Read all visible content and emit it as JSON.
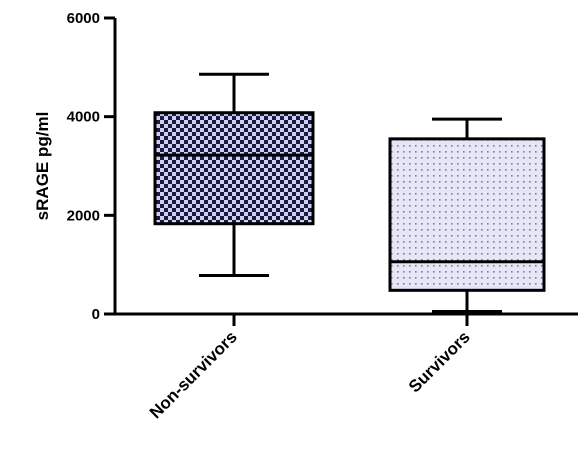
{
  "chart_data": {
    "type": "box",
    "ylabel": "sRAGE pg/ml",
    "ylim": [
      0,
      6000
    ],
    "yticks": [
      0,
      2000,
      4000,
      6000
    ],
    "grid": false,
    "categories": [
      "Non-survivors",
      "Survivors"
    ],
    "boxes": [
      {
        "category": "Non-survivors",
        "min": 780,
        "q1": 1830,
        "median": 3220,
        "q3": 4080,
        "max": 4860,
        "fill": "checkerboard"
      },
      {
        "category": "Survivors",
        "min": 50,
        "q1": 480,
        "median": 1060,
        "q3": 3550,
        "max": 3950,
        "fill": "dotted"
      }
    ],
    "colors": {
      "non_survivors_dark": "#1a1a44",
      "non_survivors_light": "#cfd0ee",
      "survivors_base": "#e6e6f6",
      "survivors_dot": "#7a7aa8",
      "stroke": "#000000"
    }
  }
}
